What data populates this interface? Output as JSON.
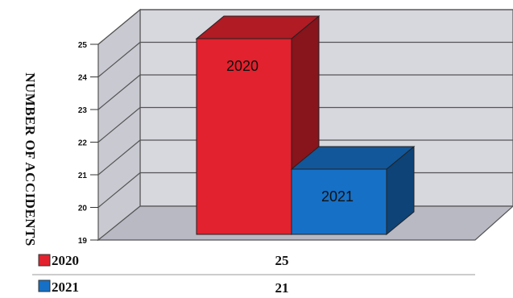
{
  "chart_data": {
    "type": "bar",
    "ylabel": "NUMBER OF ACCIDENTS",
    "ylim": [
      19,
      25
    ],
    "yticks": [
      19,
      20,
      21,
      22,
      23,
      24,
      25
    ],
    "grid": true,
    "series": [
      {
        "name": "2020",
        "value": 25,
        "color": "#e2222e",
        "label": "2020"
      },
      {
        "name": "2021",
        "value": 21,
        "color": "#1670c6",
        "label": "2021"
      }
    ],
    "table": [
      {
        "key": "2020",
        "value": "25"
      },
      {
        "key": "2021",
        "value": "21"
      }
    ]
  }
}
